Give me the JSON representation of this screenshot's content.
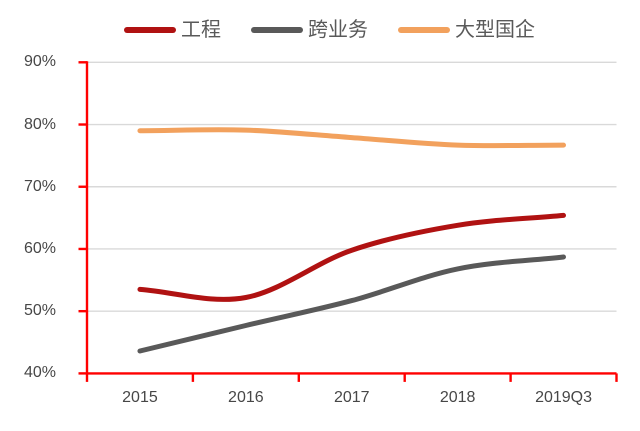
{
  "chart_data": {
    "type": "line",
    "title": "",
    "categories": [
      "2015",
      "2016",
      "2017",
      "2018",
      "2019Q3"
    ],
    "series": [
      {
        "name": "工程",
        "color": "#B01212",
        "values": [
          53.5,
          52.2,
          59.8,
          63.8,
          65.4
        ]
      },
      {
        "name": "跨业务",
        "color": "#595959",
        "values": [
          43.6,
          47.7,
          51.7,
          56.8,
          58.7
        ]
      },
      {
        "name": "大型国企",
        "color": "#F2A15D",
        "values": [
          79.0,
          79.1,
          77.9,
          76.7,
          76.7
        ]
      }
    ],
    "xlabel": "",
    "ylabel": "",
    "ylim": [
      40,
      90
    ],
    "yticks": [
      40,
      50,
      60,
      70,
      80,
      90
    ],
    "ytick_suffix": "%",
    "grid": "horizontal",
    "legend_position": "top",
    "axis_color": "#FF0000",
    "gridline_color": "#D9D9D9",
    "tick_label_color": "#474747",
    "legend_text_color": "#595959"
  }
}
